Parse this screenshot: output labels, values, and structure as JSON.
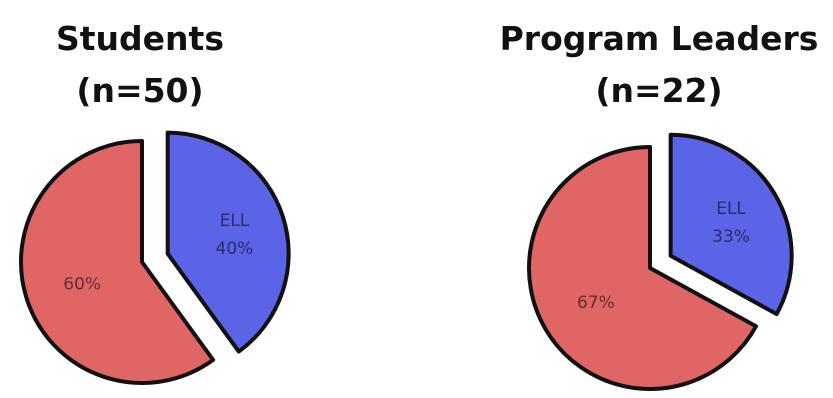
{
  "chart_data": [
    {
      "type": "pie",
      "title": [
        "Students",
        "(n=50)"
      ],
      "slices": [
        {
          "label": "ELL",
          "value": 40,
          "value_text": "40%",
          "color": "#5b63e6",
          "exploded": true
        },
        {
          "label": "",
          "value": 60,
          "value_text": "60%",
          "color": "#e06666",
          "exploded": false
        }
      ]
    },
    {
      "type": "pie",
      "title": [
        "Program Leaders",
        "(n=22)"
      ],
      "slices": [
        {
          "label": "ELL",
          "value": 33,
          "value_text": "33%",
          "color": "#5b63e6",
          "exploded": true
        },
        {
          "label": "",
          "value": 67,
          "value_text": "67%",
          "color": "#e06666",
          "exploded": false
        }
      ]
    }
  ]
}
